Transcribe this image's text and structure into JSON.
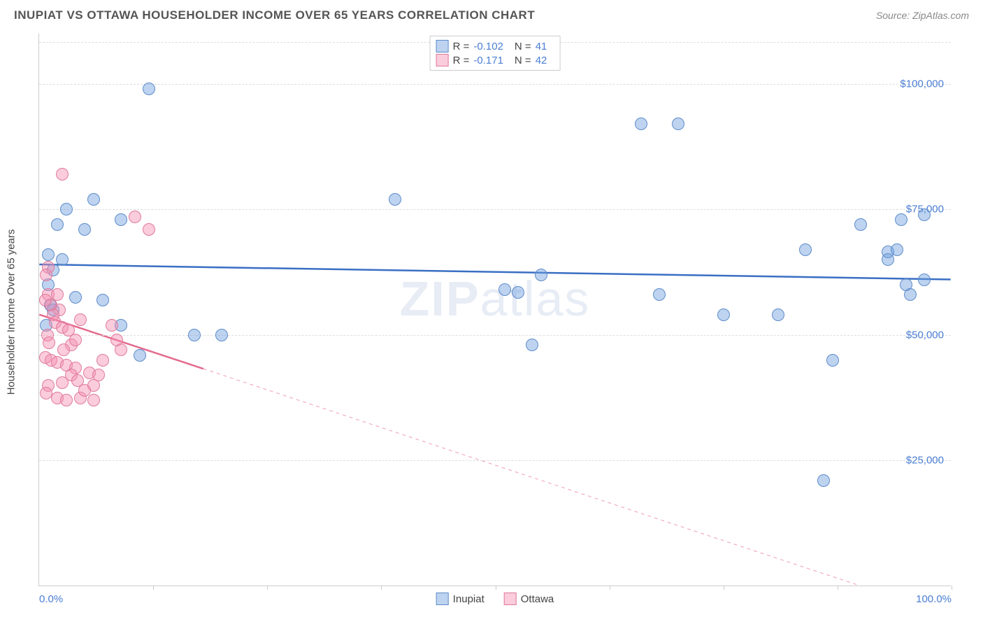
{
  "title": "INUPIAT VS OTTAWA HOUSEHOLDER INCOME OVER 65 YEARS CORRELATION CHART",
  "source_label": "Source: ZipAtlas.com",
  "watermark": {
    "bold": "ZIP",
    "rest": "atlas"
  },
  "y_axis_label": "Householder Income Over 65 years",
  "chart": {
    "type": "scatter",
    "xlim": [
      0,
      100
    ],
    "ylim": [
      0,
      110000
    ],
    "background_color": "#ffffff",
    "grid_color": "#dddddd",
    "axis_color": "#cccccc",
    "yticks": [
      {
        "value": 25000,
        "label": "$25,000"
      },
      {
        "value": 50000,
        "label": "$50,000"
      },
      {
        "value": 75000,
        "label": "$75,000"
      },
      {
        "value": 100000,
        "label": "$100,000"
      }
    ],
    "xticks_minor": [
      12.5,
      25,
      37.5,
      50,
      62.5,
      75,
      87.5,
      100
    ],
    "xtick_labels": [
      {
        "value": 0,
        "label": "0.0%"
      },
      {
        "value": 100,
        "label": "100.0%"
      }
    ],
    "marker_radius": 9,
    "marker_border_width": 1,
    "series": [
      {
        "name": "Inupiat",
        "fill_color": "rgba(109,158,222,0.45)",
        "border_color": "#5e8cc9",
        "trend_color": "#3a6fc4",
        "trend_width": 2.5,
        "trend_solid_end_x": 100,
        "R_label": "R =",
        "R_value": "-0.102",
        "N_label": "N =",
        "N_value": "41",
        "trend": {
          "y_at_x0": 64000,
          "y_at_x100": 61000
        },
        "points": [
          {
            "x": 12,
            "y": 99000
          },
          {
            "x": 66,
            "y": 92000
          },
          {
            "x": 70,
            "y": 92000
          },
          {
            "x": 6,
            "y": 77000
          },
          {
            "x": 3,
            "y": 75000
          },
          {
            "x": 9,
            "y": 73000
          },
          {
            "x": 2,
            "y": 72000
          },
          {
            "x": 5,
            "y": 71000
          },
          {
            "x": 1,
            "y": 66000
          },
          {
            "x": 2.5,
            "y": 65000
          },
          {
            "x": 1.5,
            "y": 63000
          },
          {
            "x": 1,
            "y": 60000
          },
          {
            "x": 4,
            "y": 57500
          },
          {
            "x": 7,
            "y": 57000
          },
          {
            "x": 1.5,
            "y": 55000
          },
          {
            "x": 9,
            "y": 52000
          },
          {
            "x": 0.8,
            "y": 52000
          },
          {
            "x": 1.2,
            "y": 56000
          },
          {
            "x": 17,
            "y": 50000
          },
          {
            "x": 20,
            "y": 50000
          },
          {
            "x": 11,
            "y": 46000
          },
          {
            "x": 39,
            "y": 77000
          },
          {
            "x": 55,
            "y": 62000
          },
          {
            "x": 54,
            "y": 48000
          },
          {
            "x": 51,
            "y": 59000
          },
          {
            "x": 52.5,
            "y": 58500
          },
          {
            "x": 68,
            "y": 58000
          },
          {
            "x": 75,
            "y": 54000
          },
          {
            "x": 81,
            "y": 54000
          },
          {
            "x": 84,
            "y": 67000
          },
          {
            "x": 87,
            "y": 45000
          },
          {
            "x": 86,
            "y": 21000
          },
          {
            "x": 90,
            "y": 72000
          },
          {
            "x": 93,
            "y": 66500
          },
          {
            "x": 93,
            "y": 65000
          },
          {
            "x": 94,
            "y": 67000
          },
          {
            "x": 94.5,
            "y": 73000
          },
          {
            "x": 95,
            "y": 60000
          },
          {
            "x": 95.5,
            "y": 58000
          },
          {
            "x": 97,
            "y": 74000
          },
          {
            "x": 97,
            "y": 61000
          }
        ]
      },
      {
        "name": "Ottawa",
        "fill_color": "rgba(244,143,177,0.45)",
        "border_color": "#e07a9a",
        "trend_color": "#e46a8e",
        "trend_width": 2.5,
        "trend_solid_end_x": 18,
        "R_label": "R =",
        "R_value": "-0.171",
        "N_label": "N =",
        "N_value": "42",
        "trend": {
          "y_at_x0": 54000,
          "y_at_x100": -6000
        },
        "points": [
          {
            "x": 2.5,
            "y": 82000
          },
          {
            "x": 1,
            "y": 63500
          },
          {
            "x": 0.8,
            "y": 62000
          },
          {
            "x": 10.5,
            "y": 73500
          },
          {
            "x": 12,
            "y": 71000
          },
          {
            "x": 1,
            "y": 58000
          },
          {
            "x": 2,
            "y": 58000
          },
          {
            "x": 1.3,
            "y": 56000
          },
          {
            "x": 0.7,
            "y": 57000
          },
          {
            "x": 2.2,
            "y": 55000
          },
          {
            "x": 1.5,
            "y": 54000
          },
          {
            "x": 1.8,
            "y": 52500
          },
          {
            "x": 2.5,
            "y": 51500
          },
          {
            "x": 3.2,
            "y": 51000
          },
          {
            "x": 0.9,
            "y": 50000
          },
          {
            "x": 1.1,
            "y": 48500
          },
          {
            "x": 3.5,
            "y": 48000
          },
          {
            "x": 2.7,
            "y": 47000
          },
          {
            "x": 4.5,
            "y": 53000
          },
          {
            "x": 4,
            "y": 49000
          },
          {
            "x": 0.7,
            "y": 45500
          },
          {
            "x": 1.3,
            "y": 45000
          },
          {
            "x": 2,
            "y": 44500
          },
          {
            "x": 3,
            "y": 44000
          },
          {
            "x": 4,
            "y": 43500
          },
          {
            "x": 3.5,
            "y": 42000
          },
          {
            "x": 5.5,
            "y": 42500
          },
          {
            "x": 4.2,
            "y": 41000
          },
          {
            "x": 2.5,
            "y": 40500
          },
          {
            "x": 1,
            "y": 40000
          },
          {
            "x": 0.8,
            "y": 38500
          },
          {
            "x": 2,
            "y": 37500
          },
          {
            "x": 3,
            "y": 37000
          },
          {
            "x": 4.5,
            "y": 37500
          },
          {
            "x": 6,
            "y": 40000
          },
          {
            "x": 6.5,
            "y": 42000
          },
          {
            "x": 7,
            "y": 45000
          },
          {
            "x": 5,
            "y": 39000
          },
          {
            "x": 8,
            "y": 52000
          },
          {
            "x": 8.5,
            "y": 49000
          },
          {
            "x": 9,
            "y": 47000
          },
          {
            "x": 6,
            "y": 37000
          }
        ]
      }
    ]
  },
  "legend_bottom": [
    {
      "name": "Inupiat",
      "fill": "rgba(109,158,222,0.45)",
      "border": "#5e8cc9"
    },
    {
      "name": "Ottawa",
      "fill": "rgba(244,143,177,0.45)",
      "border": "#e07a9a"
    }
  ]
}
